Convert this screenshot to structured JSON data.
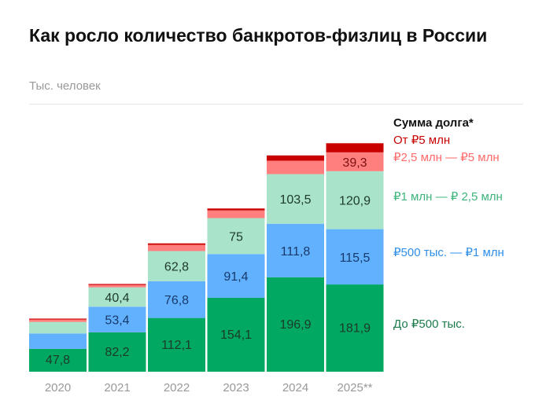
{
  "chart_data": {
    "type": "bar",
    "stacked": true,
    "title": "Как росло количество банкротов-физлиц в России",
    "subtitle": "Тыс. человек",
    "legend_title": "Сумма долга*",
    "legend_position": "right",
    "categories": [
      "2020",
      "2021",
      "2022",
      "2023",
      "2024",
      "2025**"
    ],
    "series": [
      {
        "name": "До ₽500 тыс.",
        "color": "#00a862",
        "label_color": "#1a7a4a",
        "values": [
          47.8,
          82.2,
          112.1,
          154.1,
          196.9,
          181.9
        ],
        "labeled": [
          true,
          true,
          true,
          true,
          true,
          true
        ]
      },
      {
        "name": "₽500 тыс. — ₽1 млн",
        "color": "#62b1ff",
        "label_color": "#2f8fe8",
        "values": [
          32,
          53.4,
          76.8,
          91.4,
          111.8,
          115.5
        ],
        "labeled": [
          false,
          true,
          true,
          true,
          true,
          true
        ]
      },
      {
        "name": "₽1 млн — ₽ 2,5 млн",
        "color": "#a9e3c9",
        "label_color": "#3fb57d",
        "values": [
          24,
          40.4,
          62.8,
          75,
          103.5,
          120.9
        ],
        "labeled": [
          false,
          true,
          true,
          true,
          true,
          true
        ]
      },
      {
        "name": "₽2,5 млн — ₽5 млн",
        "color": "#ff7f7f",
        "label_color": "#ff6a6a",
        "values": [
          5,
          5,
          13,
          16,
          28,
          39.3
        ],
        "labeled": [
          false,
          false,
          false,
          false,
          false,
          true
        ]
      },
      {
        "name": "От ₽5 млн",
        "color": "#c90000",
        "label_color": "#c90000",
        "values": [
          2,
          2,
          3,
          4,
          11,
          19
        ],
        "labeled": [
          false,
          false,
          false,
          false,
          false,
          false
        ]
      }
    ],
    "grid": false
  }
}
